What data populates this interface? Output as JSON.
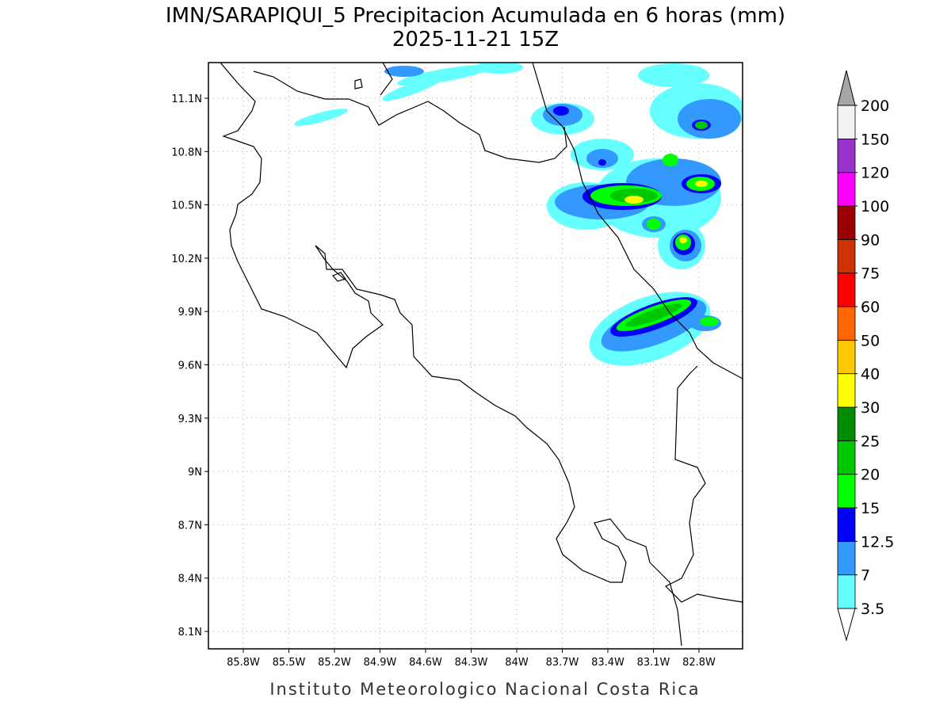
{
  "title": "IMN/SARAPIQUI_5 Precipitacion Acumulada en 6 horas (mm)",
  "subtitle": "2025-11-21 15Z",
  "map": {
    "lat_labels": [
      "11.1N",
      "10.8N",
      "10.5N",
      "10.2N",
      "9.9N",
      "9.6N",
      "9.3N",
      "9N",
      "8.7N",
      "8.4N",
      "8.1N"
    ],
    "lon_labels": [
      "85.8W",
      "85.5W",
      "85.2W",
      "84.9W",
      "84.6W",
      "84.3W",
      "84W",
      "83.7W",
      "83.4W",
      "83.1W",
      "82.8W"
    ]
  },
  "colorbar": {
    "levels": [
      3.5,
      7,
      12.5,
      15,
      20,
      25,
      30,
      40,
      50,
      60,
      75,
      90,
      100,
      120,
      150,
      200
    ],
    "colors": [
      "#66ffff",
      "#3399ff",
      "#0000ff",
      "#00ff00",
      "#00c800",
      "#008c00",
      "#ffff00",
      "#ffc800",
      "#ff6600",
      "#ff0000",
      "#cc3300",
      "#990000",
      "#ff00ff",
      "#9933cc",
      "#f2f2f2"
    ],
    "under_color": "#ffffff",
    "over_color": "#a6a6a6"
  },
  "footer": "Instituto Meteorologico Nacional Costa Rica"
}
